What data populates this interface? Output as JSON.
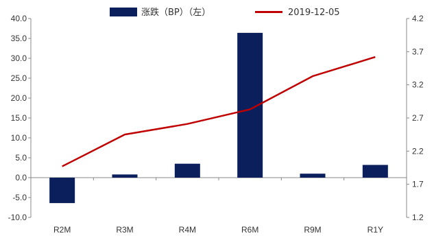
{
  "chart_data": {
    "type": "bar",
    "categories": [
      "R2M",
      "R3M",
      "R4M",
      "R6M",
      "R9M",
      "R1Y"
    ],
    "series": [
      {
        "name": "涨跌（BP）（左）",
        "type": "bar",
        "axis": "left",
        "color": "#0b1f5c",
        "values": [
          -6.4,
          0.8,
          3.5,
          36.4,
          1.0,
          3.2
        ]
      },
      {
        "name": "2019-12-05",
        "type": "line",
        "axis": "right",
        "color": "#c00000",
        "values": [
          1.97,
          2.45,
          2.61,
          2.83,
          3.33,
          3.62
        ]
      }
    ],
    "y_left": {
      "min": -10,
      "max": 40,
      "step": 5,
      "tick_labels": [
        "-10.0",
        "-5.0",
        "0.0",
        "5.0",
        "10.0",
        "15.0",
        "20.0",
        "25.0",
        "30.0",
        "35.0",
        "40.0"
      ]
    },
    "y_right": {
      "min": 1.2,
      "max": 4.2,
      "step": 0.5,
      "tick_labels": [
        "1.2",
        "1.7",
        "2.2",
        "2.7",
        "3.2",
        "3.7",
        "4.2"
      ]
    },
    "legend_position": "top-center",
    "grid": false
  }
}
